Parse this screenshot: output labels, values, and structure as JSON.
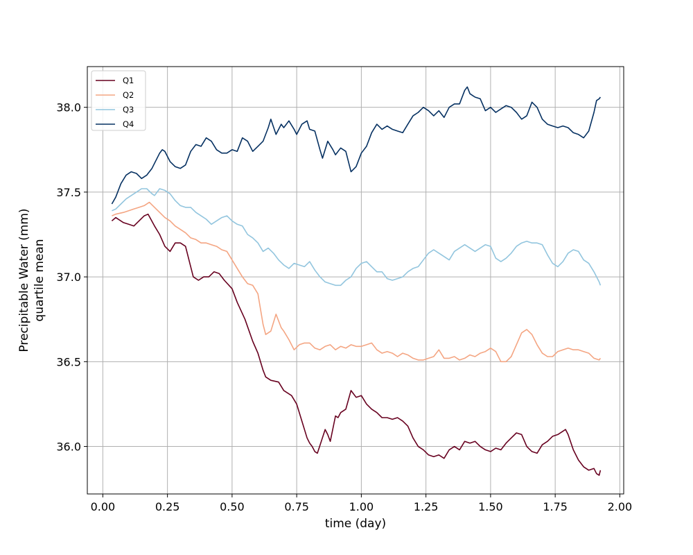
{
  "chart_data": {
    "type": "line",
    "title": "",
    "xlabel": "time (day)",
    "ylabel_line1": "Precipitable Water (mm)",
    "ylabel_line2": "quartile mean",
    "xlim": [
      -0.06,
      2.015
    ],
    "ylim": [
      35.72,
      38.24
    ],
    "xticks": [
      0.0,
      0.25,
      0.5,
      0.75,
      1.0,
      1.25,
      1.5,
      1.75,
      2.0
    ],
    "xtick_labels": [
      "0.00",
      "0.25",
      "0.50",
      "0.75",
      "1.00",
      "1.25",
      "1.50",
      "1.75",
      "2.00"
    ],
    "yticks": [
      36.0,
      36.5,
      37.0,
      37.5,
      38.0
    ],
    "ytick_labels": [
      "36.0",
      "36.5",
      "37.0",
      "37.5",
      "38.0"
    ],
    "grid": true,
    "legend_position": "top-left",
    "series": [
      {
        "name": "Q1",
        "color": "#67001f",
        "x": [
          0.035,
          0.05,
          0.08,
          0.1,
          0.12,
          0.14,
          0.16,
          0.175,
          0.2,
          0.22,
          0.24,
          0.26,
          0.28,
          0.3,
          0.32,
          0.35,
          0.37,
          0.39,
          0.41,
          0.43,
          0.45,
          0.47,
          0.5,
          0.52,
          0.55,
          0.58,
          0.6,
          0.62,
          0.63,
          0.65,
          0.68,
          0.7,
          0.73,
          0.75,
          0.77,
          0.79,
          0.8,
          0.81,
          0.82,
          0.83,
          0.845,
          0.86,
          0.87,
          0.88,
          0.9,
          0.91,
          0.92,
          0.94,
          0.96,
          0.98,
          1.0,
          1.02,
          1.04,
          1.06,
          1.08,
          1.1,
          1.12,
          1.14,
          1.16,
          1.18,
          1.2,
          1.22,
          1.24,
          1.26,
          1.28,
          1.3,
          1.32,
          1.34,
          1.36,
          1.38,
          1.4,
          1.42,
          1.44,
          1.46,
          1.48,
          1.5,
          1.52,
          1.54,
          1.56,
          1.58,
          1.6,
          1.62,
          1.64,
          1.66,
          1.68,
          1.7,
          1.72,
          1.74,
          1.76,
          1.78,
          1.79,
          1.8,
          1.82,
          1.84,
          1.86,
          1.88,
          1.9,
          1.91,
          1.92,
          1.925
        ],
        "values": [
          37.33,
          37.35,
          37.32,
          37.31,
          37.3,
          37.33,
          37.36,
          37.37,
          37.3,
          37.25,
          37.18,
          37.15,
          37.2,
          37.2,
          37.18,
          37.0,
          36.98,
          37.0,
          37.0,
          37.03,
          37.02,
          36.98,
          36.93,
          36.85,
          36.75,
          36.62,
          36.55,
          36.45,
          36.41,
          36.39,
          36.38,
          36.33,
          36.3,
          36.25,
          36.15,
          36.05,
          36.02,
          36.0,
          35.97,
          35.96,
          36.03,
          36.1,
          36.07,
          36.03,
          36.18,
          36.17,
          36.2,
          36.22,
          36.33,
          36.29,
          36.3,
          36.25,
          36.22,
          36.2,
          36.17,
          36.17,
          36.16,
          36.17,
          36.15,
          36.12,
          36.05,
          36.0,
          35.98,
          35.95,
          35.94,
          35.95,
          35.93,
          35.98,
          36.0,
          35.98,
          36.03,
          36.02,
          36.03,
          36.0,
          35.98,
          35.97,
          35.99,
          35.98,
          36.02,
          36.05,
          36.08,
          36.07,
          36.0,
          35.97,
          35.96,
          36.01,
          36.03,
          36.06,
          36.07,
          36.09,
          36.1,
          36.07,
          35.98,
          35.92,
          35.88,
          35.86,
          35.87,
          35.84,
          35.83,
          35.86
        ]
      },
      {
        "name": "Q2",
        "color": "#f4a582",
        "x": [
          0.035,
          0.05,
          0.08,
          0.1,
          0.12,
          0.14,
          0.16,
          0.18,
          0.2,
          0.22,
          0.24,
          0.26,
          0.28,
          0.3,
          0.32,
          0.34,
          0.36,
          0.38,
          0.4,
          0.42,
          0.44,
          0.46,
          0.48,
          0.5,
          0.52,
          0.54,
          0.56,
          0.58,
          0.6,
          0.62,
          0.63,
          0.65,
          0.67,
          0.69,
          0.7,
          0.72,
          0.74,
          0.76,
          0.78,
          0.8,
          0.82,
          0.84,
          0.86,
          0.88,
          0.9,
          0.92,
          0.94,
          0.96,
          0.98,
          1.0,
          1.02,
          1.04,
          1.06,
          1.08,
          1.1,
          1.12,
          1.14,
          1.16,
          1.18,
          1.2,
          1.22,
          1.24,
          1.26,
          1.28,
          1.3,
          1.32,
          1.34,
          1.36,
          1.38,
          1.4,
          1.42,
          1.44,
          1.46,
          1.48,
          1.5,
          1.52,
          1.54,
          1.56,
          1.58,
          1.6,
          1.62,
          1.64,
          1.66,
          1.68,
          1.7,
          1.72,
          1.74,
          1.76,
          1.78,
          1.8,
          1.82,
          1.84,
          1.86,
          1.88,
          1.9,
          1.92,
          1.925
        ],
        "values": [
          37.36,
          37.37,
          37.38,
          37.39,
          37.4,
          37.41,
          37.42,
          37.44,
          37.41,
          37.38,
          37.35,
          37.33,
          37.3,
          37.28,
          37.26,
          37.23,
          37.22,
          37.2,
          37.2,
          37.19,
          37.18,
          37.16,
          37.15,
          37.1,
          37.05,
          37.0,
          36.96,
          36.95,
          36.9,
          36.72,
          36.66,
          36.68,
          36.78,
          36.7,
          36.68,
          36.63,
          36.57,
          36.6,
          36.61,
          36.61,
          36.58,
          36.57,
          36.59,
          36.6,
          36.57,
          36.59,
          36.58,
          36.6,
          36.59,
          36.59,
          36.6,
          36.61,
          36.57,
          36.55,
          36.56,
          36.55,
          36.53,
          36.55,
          36.54,
          36.52,
          36.51,
          36.51,
          36.52,
          36.53,
          36.57,
          36.52,
          36.52,
          36.53,
          36.51,
          36.52,
          36.54,
          36.53,
          36.55,
          36.56,
          36.58,
          36.56,
          36.5,
          36.5,
          36.53,
          36.6,
          36.67,
          36.69,
          36.66,
          36.6,
          36.55,
          36.53,
          36.53,
          36.56,
          36.57,
          36.58,
          36.57,
          36.57,
          36.56,
          36.55,
          36.52,
          36.51,
          36.52
        ]
      },
      {
        "name": "Q3",
        "color": "#92c5de",
        "x": [
          0.035,
          0.05,
          0.07,
          0.09,
          0.11,
          0.13,
          0.15,
          0.17,
          0.19,
          0.2,
          0.22,
          0.24,
          0.26,
          0.28,
          0.3,
          0.32,
          0.34,
          0.36,
          0.38,
          0.4,
          0.42,
          0.44,
          0.46,
          0.48,
          0.5,
          0.52,
          0.54,
          0.56,
          0.58,
          0.6,
          0.62,
          0.64,
          0.66,
          0.68,
          0.7,
          0.72,
          0.74,
          0.76,
          0.78,
          0.8,
          0.82,
          0.84,
          0.86,
          0.88,
          0.9,
          0.92,
          0.94,
          0.96,
          0.98,
          1.0,
          1.02,
          1.04,
          1.06,
          1.08,
          1.1,
          1.12,
          1.14,
          1.16,
          1.18,
          1.2,
          1.22,
          1.24,
          1.26,
          1.28,
          1.3,
          1.32,
          1.34,
          1.36,
          1.38,
          1.4,
          1.42,
          1.44,
          1.46,
          1.48,
          1.5,
          1.52,
          1.54,
          1.56,
          1.58,
          1.6,
          1.62,
          1.64,
          1.66,
          1.68,
          1.7,
          1.72,
          1.74,
          1.76,
          1.78,
          1.8,
          1.82,
          1.84,
          1.86,
          1.88,
          1.9,
          1.92,
          1.925
        ],
        "values": [
          37.39,
          37.4,
          37.43,
          37.46,
          37.48,
          37.5,
          37.52,
          37.52,
          37.49,
          37.48,
          37.52,
          37.51,
          37.49,
          37.45,
          37.42,
          37.41,
          37.41,
          37.38,
          37.36,
          37.34,
          37.31,
          37.33,
          37.35,
          37.36,
          37.33,
          37.31,
          37.3,
          37.25,
          37.23,
          37.2,
          37.15,
          37.17,
          37.14,
          37.1,
          37.07,
          37.05,
          37.08,
          37.07,
          37.06,
          37.09,
          37.04,
          37.0,
          36.97,
          36.96,
          36.95,
          36.95,
          36.98,
          37.0,
          37.05,
          37.08,
          37.09,
          37.06,
          37.03,
          37.03,
          36.99,
          36.98,
          36.99,
          37.0,
          37.03,
          37.05,
          37.06,
          37.1,
          37.14,
          37.16,
          37.14,
          37.12,
          37.1,
          37.15,
          37.17,
          37.19,
          37.17,
          37.15,
          37.17,
          37.19,
          37.18,
          37.11,
          37.09,
          37.11,
          37.14,
          37.18,
          37.2,
          37.21,
          37.2,
          37.2,
          37.19,
          37.13,
          37.08,
          37.06,
          37.09,
          37.14,
          37.16,
          37.15,
          37.1,
          37.08,
          37.03,
          36.97,
          36.95
        ]
      },
      {
        "name": "Q4",
        "color": "#053061",
        "x": [
          0.035,
          0.05,
          0.07,
          0.09,
          0.11,
          0.13,
          0.15,
          0.17,
          0.19,
          0.2,
          0.22,
          0.23,
          0.24,
          0.26,
          0.28,
          0.3,
          0.32,
          0.34,
          0.36,
          0.38,
          0.4,
          0.42,
          0.44,
          0.46,
          0.48,
          0.5,
          0.52,
          0.54,
          0.56,
          0.58,
          0.6,
          0.62,
          0.64,
          0.65,
          0.67,
          0.69,
          0.7,
          0.72,
          0.74,
          0.75,
          0.77,
          0.79,
          0.8,
          0.82,
          0.84,
          0.85,
          0.87,
          0.89,
          0.9,
          0.92,
          0.94,
          0.96,
          0.98,
          1.0,
          1.02,
          1.04,
          1.06,
          1.08,
          1.1,
          1.12,
          1.14,
          1.16,
          1.18,
          1.2,
          1.22,
          1.24,
          1.26,
          1.28,
          1.3,
          1.32,
          1.34,
          1.36,
          1.38,
          1.4,
          1.41,
          1.42,
          1.43,
          1.44,
          1.46,
          1.48,
          1.5,
          1.52,
          1.54,
          1.56,
          1.58,
          1.6,
          1.62,
          1.64,
          1.66,
          1.68,
          1.7,
          1.72,
          1.74,
          1.76,
          1.78,
          1.8,
          1.82,
          1.84,
          1.86,
          1.88,
          1.9,
          1.91,
          1.92,
          1.925
        ],
        "values": [
          37.43,
          37.47,
          37.55,
          37.6,
          37.62,
          37.61,
          37.58,
          37.6,
          37.64,
          37.67,
          37.73,
          37.75,
          37.74,
          37.68,
          37.65,
          37.64,
          37.66,
          37.74,
          37.78,
          37.77,
          37.82,
          37.8,
          37.75,
          37.73,
          37.73,
          37.75,
          37.74,
          37.82,
          37.8,
          37.74,
          37.77,
          37.8,
          37.88,
          37.93,
          37.84,
          37.9,
          37.88,
          37.92,
          37.87,
          37.84,
          37.9,
          37.92,
          37.87,
          37.86,
          37.75,
          37.7,
          37.8,
          37.75,
          37.72,
          37.76,
          37.74,
          37.62,
          37.65,
          37.73,
          37.77,
          37.85,
          37.9,
          37.87,
          37.89,
          37.87,
          37.86,
          37.85,
          37.9,
          37.95,
          37.97,
          38.0,
          37.98,
          37.95,
          37.98,
          37.94,
          38.0,
          38.02,
          38.02,
          38.1,
          38.12,
          38.08,
          38.07,
          38.06,
          38.05,
          37.98,
          38.0,
          37.97,
          37.99,
          38.01,
          38.0,
          37.97,
          37.93,
          37.95,
          38.03,
          38.0,
          37.93,
          37.9,
          37.89,
          37.88,
          37.89,
          37.88,
          37.85,
          37.84,
          37.82,
          37.86,
          37.97,
          38.04,
          38.05,
          38.06
        ]
      }
    ]
  }
}
